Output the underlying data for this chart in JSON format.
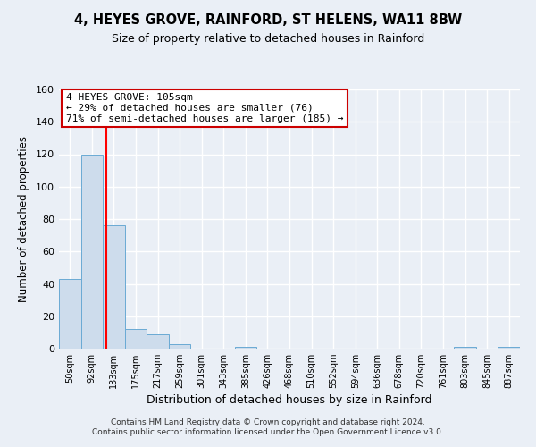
{
  "title": "4, HEYES GROVE, RAINFORD, ST HELENS, WA11 8BW",
  "subtitle": "Size of property relative to detached houses in Rainford",
  "xlabel": "Distribution of detached houses by size in Rainford",
  "ylabel": "Number of detached properties",
  "bar_labels": [
    "50sqm",
    "92sqm",
    "133sqm",
    "175sqm",
    "217sqm",
    "259sqm",
    "301sqm",
    "343sqm",
    "385sqm",
    "426sqm",
    "468sqm",
    "510sqm",
    "552sqm",
    "594sqm",
    "636sqm",
    "678sqm",
    "720sqm",
    "761sqm",
    "803sqm",
    "845sqm",
    "887sqm"
  ],
  "bar_values": [
    43,
    120,
    76,
    12,
    9,
    3,
    0,
    0,
    1,
    0,
    0,
    0,
    0,
    0,
    0,
    0,
    0,
    0,
    1,
    0,
    1
  ],
  "bar_color": "#cddcec",
  "bar_edge_color": "#6aaad4",
  "red_line_x": 1.65,
  "annotation_title": "4 HEYES GROVE: 105sqm",
  "annotation_line1": "← 29% of detached houses are smaller (76)",
  "annotation_line2": "71% of semi-detached houses are larger (185) →",
  "annotation_box_color": "#ffffff",
  "annotation_box_edge": "#cc0000",
  "ylim": [
    0,
    160
  ],
  "yticks": [
    0,
    20,
    40,
    60,
    80,
    100,
    120,
    140,
    160
  ],
  "footer1": "Contains HM Land Registry data © Crown copyright and database right 2024.",
  "footer2": "Contains public sector information licensed under the Open Government Licence v3.0.",
  "background_color": "#eaeff6",
  "grid_color": "#ffffff"
}
